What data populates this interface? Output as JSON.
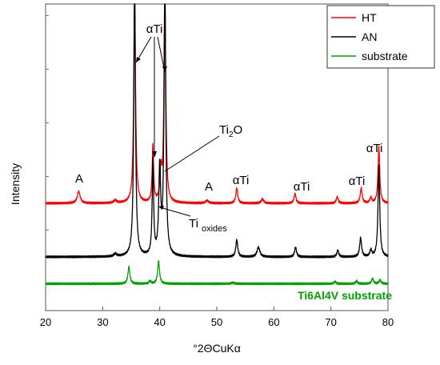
{
  "chart_data": {
    "type": "line",
    "xlabel": "°2ΘCuKα",
    "ylabel": "Intensity",
    "xlim": [
      20,
      80
    ],
    "xticks": [
      "20",
      "30",
      "40",
      "50",
      "60",
      "70",
      "80"
    ],
    "legend_position": "top-right",
    "series": [
      {
        "name": "HT",
        "color": "#ff0000",
        "baseline": 2.0,
        "peaks": [
          [
            25.8,
            0.22,
            0.3
          ],
          [
            32.2,
            0.05,
            0.3
          ],
          [
            35.6,
            4.0,
            0.18
          ],
          [
            38.8,
            1.05,
            0.15
          ],
          [
            40.2,
            0.55,
            0.18
          ],
          [
            40.9,
            4.0,
            0.18
          ],
          [
            48.3,
            0.05,
            0.3
          ],
          [
            53.5,
            0.28,
            0.2
          ],
          [
            58.0,
            0.08,
            0.25
          ],
          [
            63.7,
            0.18,
            0.2
          ],
          [
            71.1,
            0.12,
            0.2
          ],
          [
            75.3,
            0.28,
            0.2
          ],
          [
            77.0,
            0.1,
            0.2
          ],
          [
            78.4,
            1.05,
            0.18
          ]
        ]
      },
      {
        "name": "AN",
        "color": "#000000",
        "baseline": 1.0,
        "peaks": [
          [
            32.2,
            0.05,
            0.3
          ],
          [
            35.6,
            5.0,
            0.18
          ],
          [
            38.8,
            1.75,
            0.15
          ],
          [
            40.0,
            1.6,
            0.2
          ],
          [
            40.9,
            5.0,
            0.18
          ],
          [
            53.5,
            0.32,
            0.2
          ],
          [
            57.3,
            0.18,
            0.3
          ],
          [
            63.8,
            0.18,
            0.2
          ],
          [
            71.2,
            0.12,
            0.2
          ],
          [
            75.2,
            0.35,
            0.2
          ],
          [
            77.0,
            0.12,
            0.2
          ],
          [
            78.4,
            1.7,
            0.18
          ]
        ]
      },
      {
        "name": "substrate",
        "color": "#00a000",
        "baseline": 0.5,
        "peaks": [
          [
            34.6,
            0.32,
            0.2
          ],
          [
            38.3,
            0.05,
            0.2
          ],
          [
            39.8,
            0.42,
            0.2
          ],
          [
            52.8,
            0.02,
            0.3
          ],
          [
            70.7,
            0.04,
            0.2
          ],
          [
            74.5,
            0.05,
            0.2
          ],
          [
            77.3,
            0.1,
            0.2
          ],
          [
            78.6,
            0.07,
            0.2
          ]
        ]
      }
    ],
    "annotations": {
      "alpha_top": "αTi",
      "ti2o_main": "Ti",
      "ti2o_sub": "2",
      "ti2o_tail": "O",
      "a1": "A",
      "a2": "A",
      "ati1": "αTi",
      "ati2": "αTi",
      "ati3": "αTi",
      "ati4": "αTi",
      "tiox_main": "Ti",
      "tiox_sub": "oxides",
      "substrate_label": "Ti6Al4V substrate"
    }
  }
}
